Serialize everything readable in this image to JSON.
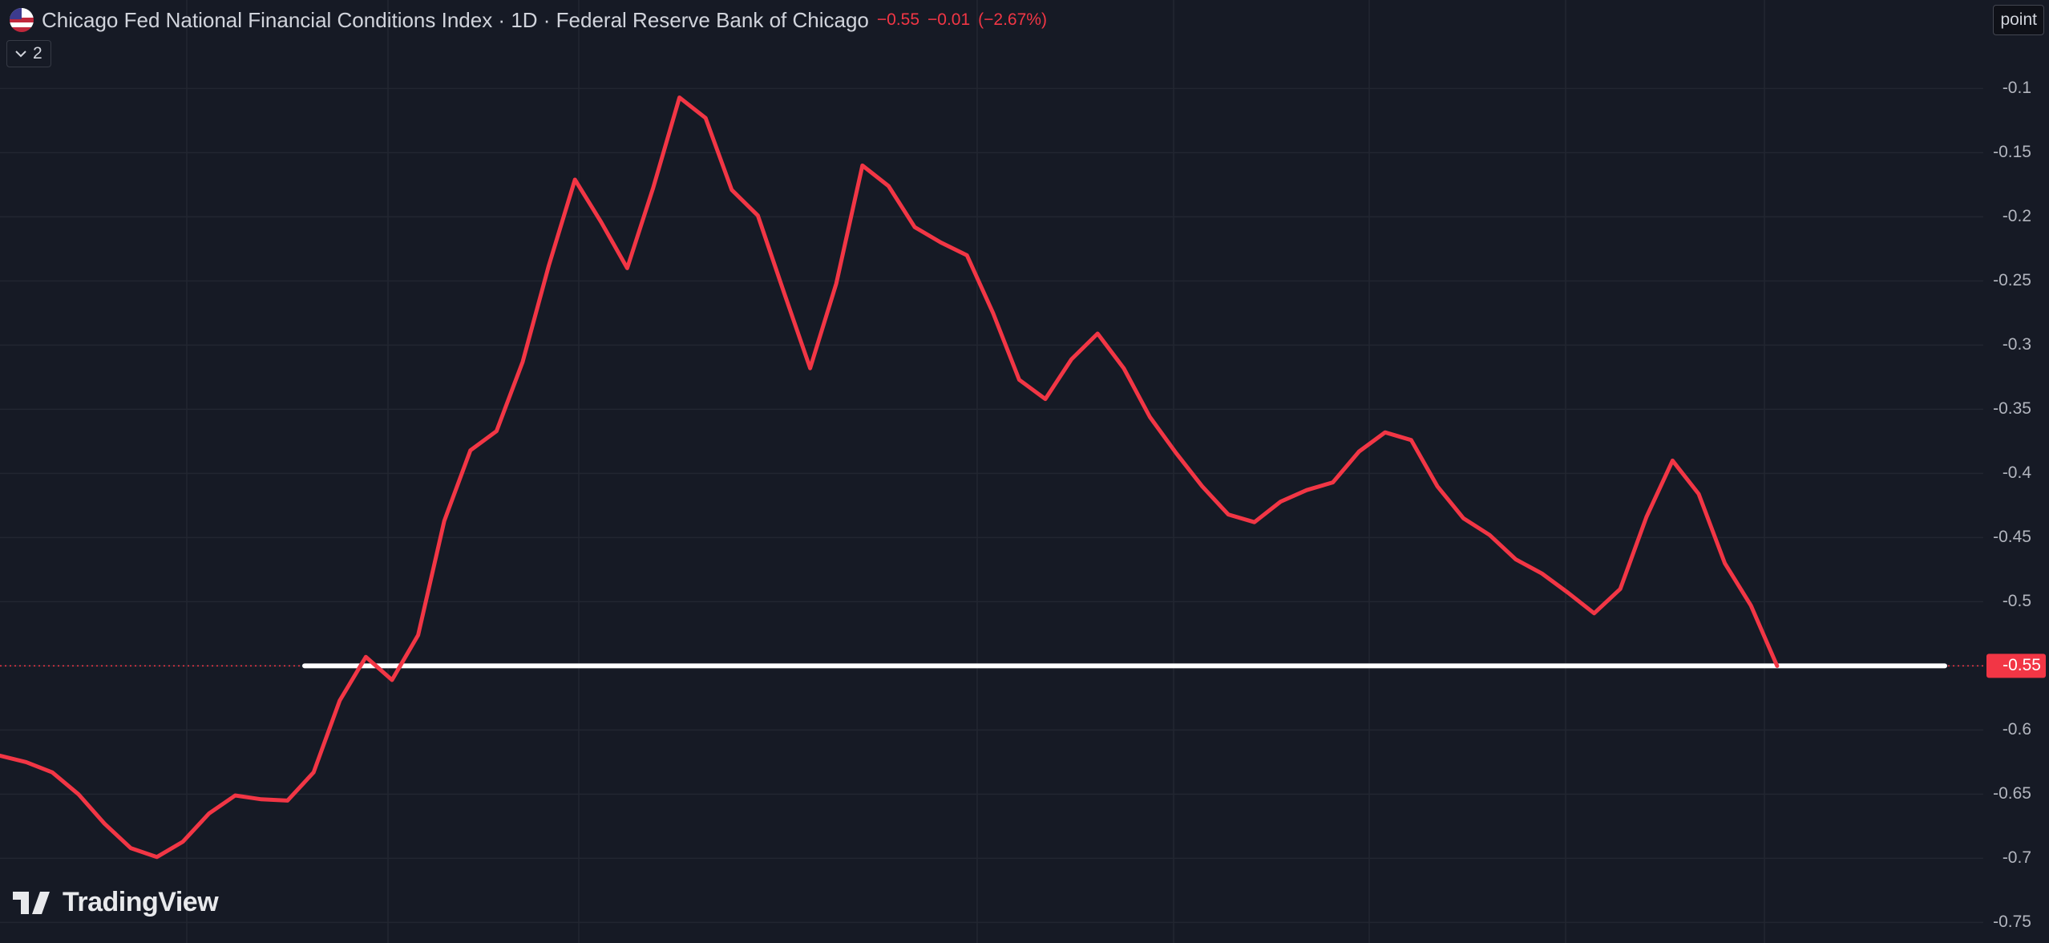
{
  "header": {
    "title": "Chicago Fed National Financial Conditions Index · 1D · Federal Reserve Bank of Chicago",
    "last": "−0.55",
    "change": "−0.01",
    "change_pct": "(−2.67%)",
    "indicator_count": "2",
    "button": "point",
    "logo": "TradingView"
  },
  "chart_data": {
    "type": "line",
    "color": "#f23645",
    "values": [
      -0.62,
      -0.625,
      -0.633,
      -0.65,
      -0.673,
      -0.692,
      -0.699,
      -0.687,
      -0.665,
      -0.651,
      -0.654,
      -0.655,
      -0.633,
      -0.577,
      -0.543,
      -0.561,
      -0.526,
      -0.437,
      -0.382,
      -0.367,
      -0.313,
      -0.238,
      -0.171,
      -0.204,
      -0.24,
      -0.177,
      -0.107,
      -0.123,
      -0.179,
      -0.199,
      -0.259,
      -0.318,
      -0.252,
      -0.16,
      -0.176,
      -0.208,
      -0.22,
      -0.23,
      -0.275,
      -0.327,
      -0.342,
      -0.311,
      -0.291,
      -0.318,
      -0.356,
      -0.384,
      -0.41,
      -0.432,
      -0.438,
      -0.422,
      -0.413,
      -0.407,
      -0.383,
      -0.368,
      -0.374,
      -0.41,
      -0.435,
      -0.448,
      -0.467,
      -0.478,
      -0.493,
      -0.509,
      -0.49,
      -0.434,
      -0.39,
      -0.416,
      -0.47,
      -0.503,
      -0.55
    ],
    "last_value": -0.55,
    "ylim": [
      -0.766,
      -0.031
    ],
    "yticks": [
      -0.1,
      -0.15,
      -0.2,
      -0.25,
      -0.3,
      -0.35,
      -0.4,
      -0.45,
      -0.5,
      -0.55,
      -0.6,
      -0.65,
      -0.7,
      -0.75
    ],
    "grid": true
  }
}
